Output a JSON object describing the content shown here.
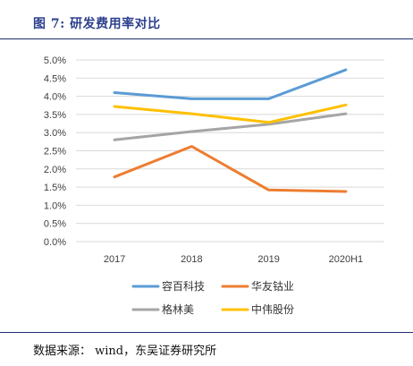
{
  "figure": {
    "title": "图 7:  研发费用率对比",
    "source": "数据来源： wind，东吴证券研究所"
  },
  "colors": {
    "title": "#2c3f8c",
    "rule": "#1d2d6e",
    "grid": "#d9d9d9"
  },
  "chart_data": {
    "type": "line",
    "categories": [
      "2017",
      "2018",
      "2019",
      "2020H1"
    ],
    "ylim": [
      0,
      5.0
    ],
    "yticks": [
      "0.0%",
      "0.5%",
      "1.0%",
      "1.5%",
      "2.0%",
      "2.5%",
      "3.0%",
      "3.5%",
      "4.0%",
      "4.5%",
      "5.0%"
    ],
    "y_unit": "%",
    "grid": "horizontal",
    "legend_position": "bottom",
    "series": [
      {
        "name": "容百科技",
        "color": "#5b9bd5",
        "values": [
          4.1,
          3.93,
          3.93,
          4.73
        ]
      },
      {
        "name": "华友钴业",
        "color": "#ed7d31",
        "values": [
          1.78,
          2.62,
          1.42,
          1.38
        ]
      },
      {
        "name": "格林美",
        "color": "#a5a5a5",
        "values": [
          2.8,
          3.03,
          3.23,
          3.52
        ]
      },
      {
        "name": "中伟股份",
        "color": "#ffc000",
        "values": [
          3.72,
          3.52,
          3.28,
          3.76
        ]
      }
    ]
  }
}
